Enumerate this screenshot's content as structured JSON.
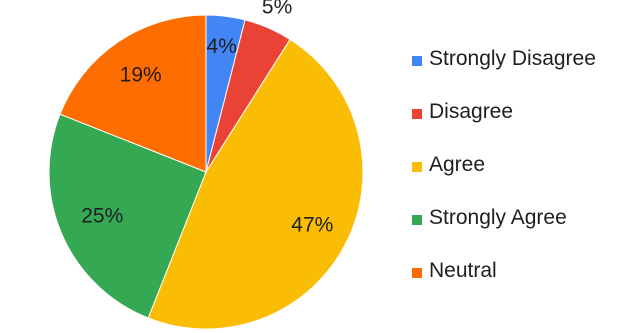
{
  "chart_data": {
    "type": "pie",
    "title": "",
    "start_angle_deg": 0,
    "direction": "clockwise",
    "slices": [
      {
        "name": "Strongly Disagree",
        "value": 4,
        "label": "4%",
        "color": "#4285f4"
      },
      {
        "name": "Disagree",
        "value": 5,
        "label": "5%",
        "color": "#ea4335"
      },
      {
        "name": "Agree",
        "value": 47,
        "label": "47%",
        "color": "#fbbc04"
      },
      {
        "name": "Strongly Agree",
        "value": 25,
        "label": "25%",
        "color": "#34a853"
      },
      {
        "name": "Neutral",
        "value": 19,
        "label": "19%",
        "color": "#ff6d01"
      }
    ],
    "legend": {
      "position": "right",
      "entries": [
        "Strongly Disagree",
        "Disagree",
        "Agree",
        "Strongly Agree",
        "Neutral"
      ]
    }
  }
}
